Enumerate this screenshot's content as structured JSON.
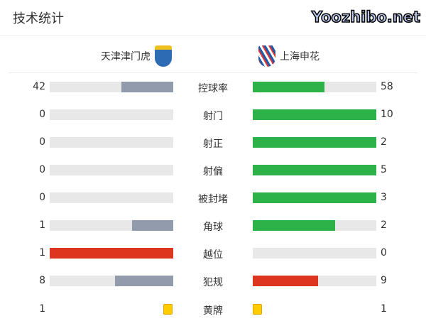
{
  "title": "技术统计",
  "home": {
    "name": "天津津门虎",
    "badge_color": "#2d6cb5"
  },
  "away": {
    "name": "上海申花",
    "badge_color": "#1f5aa8"
  },
  "colors": {
    "bar_bg": "#e8e8e8",
    "grey": "#929bab",
    "green": "#2db24a",
    "red": "#dc361e",
    "yellow": "#ffcc00"
  },
  "stats": [
    {
      "label": "控球率",
      "home": "42",
      "away": "58",
      "home_frac": 0.42,
      "away_frac": 0.58,
      "home_color": "#929bab",
      "away_color": "#2db24a"
    },
    {
      "label": "射门",
      "home": "0",
      "away": "10",
      "home_frac": 0,
      "away_frac": 1,
      "home_color": "#929bab",
      "away_color": "#2db24a"
    },
    {
      "label": "射正",
      "home": "0",
      "away": "2",
      "home_frac": 0,
      "away_frac": 1,
      "home_color": "#929bab",
      "away_color": "#2db24a"
    },
    {
      "label": "射偏",
      "home": "0",
      "away": "5",
      "home_frac": 0,
      "away_frac": 1,
      "home_color": "#929bab",
      "away_color": "#2db24a"
    },
    {
      "label": "被封堵",
      "home": "0",
      "away": "3",
      "home_frac": 0,
      "away_frac": 1,
      "home_color": "#929bab",
      "away_color": "#2db24a"
    },
    {
      "label": "角球",
      "home": "1",
      "away": "2",
      "home_frac": 0.333,
      "away_frac": 0.667,
      "home_color": "#929bab",
      "away_color": "#2db24a"
    },
    {
      "label": "越位",
      "home": "1",
      "away": "0",
      "home_frac": 1,
      "away_frac": 0,
      "home_color": "#dc361e",
      "away_color": "#dc361e"
    },
    {
      "label": "犯规",
      "home": "8",
      "away": "9",
      "home_frac": 0.47,
      "away_frac": 0.53,
      "home_color": "#929bab",
      "away_color": "#dc361e"
    }
  ],
  "yellow": {
    "label": "黄牌",
    "home": "1",
    "away": "1"
  },
  "watermark": "Yoozhibo.net"
}
